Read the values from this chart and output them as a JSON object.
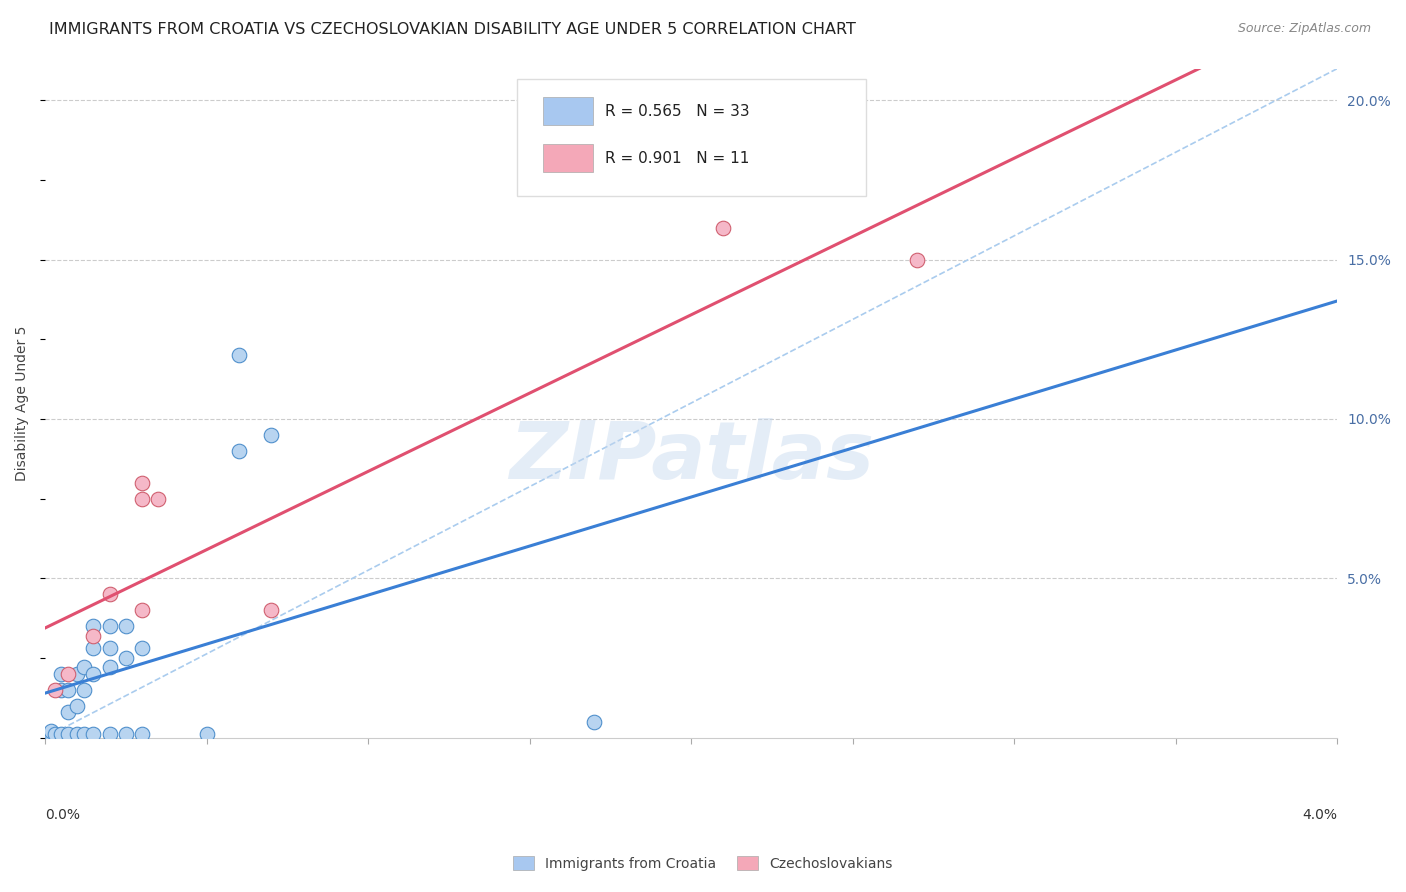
{
  "title": "IMMIGRANTS FROM CROATIA VS CZECHOSLOVAKIAN DISABILITY AGE UNDER 5 CORRELATION CHART",
  "source": "Source: ZipAtlas.com",
  "ylabel": "Disability Age Under 5",
  "yaxis_values": [
    0.05,
    0.1,
    0.15,
    0.2
  ],
  "xmin": 0.0,
  "xmax": 0.04,
  "ymin": 0.0,
  "ymax": 0.21,
  "watermark": "ZIPatlas",
  "legend_entries": [
    {
      "label": "R = 0.565   N = 33",
      "color": "#a8c8f0"
    },
    {
      "label": "R = 0.901   N = 11",
      "color": "#f4a8b8"
    }
  ],
  "legend_bottom": [
    {
      "label": "Immigrants from Croatia",
      "color": "#a8c8f0"
    },
    {
      "label": "Czechoslovakians",
      "color": "#f4a8b8"
    }
  ],
  "croatia_points": [
    [
      0.0002,
      0.001
    ],
    [
      0.0002,
      0.002
    ],
    [
      0.0003,
      0.001
    ],
    [
      0.0005,
      0.001
    ],
    [
      0.0005,
      0.015
    ],
    [
      0.0005,
      0.02
    ],
    [
      0.0007,
      0.001
    ],
    [
      0.0007,
      0.008
    ],
    [
      0.0007,
      0.015
    ],
    [
      0.001,
      0.001
    ],
    [
      0.001,
      0.01
    ],
    [
      0.001,
      0.02
    ],
    [
      0.0012,
      0.001
    ],
    [
      0.0012,
      0.015
    ],
    [
      0.0012,
      0.022
    ],
    [
      0.0015,
      0.001
    ],
    [
      0.0015,
      0.02
    ],
    [
      0.0015,
      0.028
    ],
    [
      0.0015,
      0.035
    ],
    [
      0.002,
      0.001
    ],
    [
      0.002,
      0.022
    ],
    [
      0.002,
      0.028
    ],
    [
      0.002,
      0.035
    ],
    [
      0.0025,
      0.001
    ],
    [
      0.0025,
      0.025
    ],
    [
      0.0025,
      0.035
    ],
    [
      0.003,
      0.001
    ],
    [
      0.003,
      0.028
    ],
    [
      0.005,
      0.001
    ],
    [
      0.006,
      0.09
    ],
    [
      0.006,
      0.12
    ],
    [
      0.007,
      0.095
    ],
    [
      0.017,
      0.005
    ]
  ],
  "czech_points": [
    [
      0.0003,
      0.015
    ],
    [
      0.0007,
      0.02
    ],
    [
      0.0015,
      0.032
    ],
    [
      0.002,
      0.045
    ],
    [
      0.003,
      0.04
    ],
    [
      0.003,
      0.075
    ],
    [
      0.003,
      0.08
    ],
    [
      0.0035,
      0.075
    ],
    [
      0.007,
      0.04
    ],
    [
      0.021,
      0.16
    ],
    [
      0.027,
      0.15
    ]
  ],
  "croatia_line_color": "#3a7fd5",
  "czech_line_color": "#e05070",
  "diagonal_line_color": "#aaccee",
  "title_fontsize": 11.5,
  "axis_label_fontsize": 10,
  "tick_fontsize": 10,
  "dot_color_croatia": "#b8d4f0",
  "dot_color_czech": "#f5b8c8",
  "dot_edge_croatia": "#5090cc",
  "dot_edge_czech": "#d06070"
}
